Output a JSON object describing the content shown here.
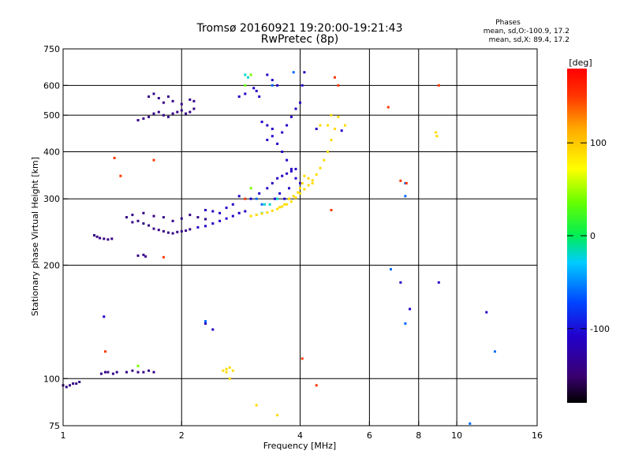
{
  "chart_data": {
    "type": "scatter",
    "title": "Tromsø 20160921 19:20:00-19:21:43",
    "subtitle": "RwPretec (8p)",
    "xlabel": "Frequency [MHz]",
    "ylabel": "Stationary phase Virtual Height [km]",
    "x_scale": "log",
    "y_scale": "log",
    "xlim": [
      1,
      16
    ],
    "ylim": [
      75,
      750
    ],
    "x_ticks": [
      1,
      2,
      4,
      6,
      8,
      10,
      16
    ],
    "y_ticks": [
      75,
      100,
      200,
      300,
      400,
      500,
      600,
      750
    ],
    "grid": true,
    "phases_title": "Phases",
    "phases_lines": [
      "mean, sd,O:-100.9, 17.2",
      "mean, sd,X: 89.4, 17.2"
    ],
    "colorbar": {
      "label": "[deg]",
      "ticks": [
        100,
        0,
        -100
      ],
      "range": [
        -180,
        180
      ]
    },
    "series": [
      {
        "phase": -140,
        "points": [
          [
            1.0,
            96
          ],
          [
            1.02,
            95
          ],
          [
            1.04,
            96
          ],
          [
            1.06,
            97
          ],
          [
            1.08,
            97
          ],
          [
            1.1,
            98
          ],
          [
            1.25,
            103
          ],
          [
            1.28,
            104
          ],
          [
            1.3,
            104
          ],
          [
            1.34,
            103
          ],
          [
            1.37,
            104
          ],
          [
            1.45,
            104
          ],
          [
            1.5,
            105
          ],
          [
            1.55,
            104
          ],
          [
            1.6,
            104
          ],
          [
            1.65,
            105
          ],
          [
            1.7,
            104
          ],
          [
            1.2,
            240
          ],
          [
            1.22,
            238
          ],
          [
            1.24,
            236
          ],
          [
            1.27,
            235
          ],
          [
            1.3,
            234
          ],
          [
            1.33,
            235
          ],
          [
            1.55,
            212
          ],
          [
            1.6,
            213
          ],
          [
            1.62,
            211
          ],
          [
            1.55,
            485
          ],
          [
            1.6,
            490
          ],
          [
            1.65,
            495
          ],
          [
            1.7,
            505
          ],
          [
            1.75,
            510
          ],
          [
            1.8,
            500
          ],
          [
            1.85,
            495
          ],
          [
            1.9,
            505
          ],
          [
            1.95,
            510
          ],
          [
            2.0,
            515
          ],
          [
            2.05,
            505
          ],
          [
            2.1,
            510
          ],
          [
            2.15,
            520
          ],
          [
            1.65,
            560
          ],
          [
            1.7,
            570
          ],
          [
            1.75,
            555
          ],
          [
            1.8,
            540
          ],
          [
            1.85,
            560
          ],
          [
            1.9,
            545
          ],
          [
            2.0,
            535
          ],
          [
            2.1,
            550
          ],
          [
            2.15,
            545
          ],
          [
            1.5,
            260
          ],
          [
            1.55,
            262
          ],
          [
            1.6,
            258
          ],
          [
            1.65,
            255
          ],
          [
            1.7,
            250
          ],
          [
            1.75,
            248
          ],
          [
            1.8,
            246
          ],
          [
            1.85,
            244
          ],
          [
            1.9,
            243
          ],
          [
            1.95,
            245
          ],
          [
            2.0,
            246
          ],
          [
            2.05,
            247
          ],
          [
            2.1,
            249
          ],
          [
            1.45,
            268
          ],
          [
            1.5,
            272
          ],
          [
            1.6,
            275
          ],
          [
            1.7,
            270
          ],
          [
            1.8,
            268
          ],
          [
            1.9,
            262
          ],
          [
            2.0,
            266
          ],
          [
            2.1,
            272
          ],
          [
            2.2,
            268
          ],
          [
            2.3,
            265
          ]
        ]
      },
      {
        "phase": -110,
        "points": [
          [
            1.27,
            146
          ],
          [
            2.4,
            135
          ],
          [
            2.3,
            140
          ],
          [
            2.2,
            252
          ],
          [
            2.3,
            254
          ],
          [
            2.4,
            258
          ],
          [
            2.5,
            262
          ],
          [
            2.6,
            266
          ],
          [
            2.7,
            270
          ],
          [
            2.8,
            275
          ],
          [
            2.9,
            278
          ],
          [
            2.3,
            280
          ],
          [
            2.4,
            278
          ],
          [
            2.5,
            275
          ],
          [
            2.6,
            284
          ],
          [
            2.7,
            290
          ],
          [
            3.2,
            480
          ],
          [
            3.3,
            470
          ],
          [
            3.4,
            460
          ],
          [
            3.5,
            420
          ],
          [
            3.6,
            400
          ],
          [
            3.7,
            380
          ],
          [
            3.8,
            360
          ],
          [
            3.9,
            340
          ],
          [
            4.0,
            330
          ],
          [
            3.6,
            450
          ],
          [
            3.7,
            470
          ],
          [
            3.8,
            495
          ],
          [
            3.9,
            520
          ],
          [
            4.0,
            540
          ],
          [
            4.05,
            600
          ],
          [
            4.1,
            650
          ],
          [
            3.3,
            640
          ],
          [
            3.4,
            620
          ],
          [
            3.5,
            600
          ],
          [
            3.3,
            430
          ],
          [
            3.4,
            440
          ],
          [
            3.05,
            590
          ],
          [
            3.1,
            580
          ],
          [
            3.15,
            560
          ],
          [
            2.8,
            560
          ],
          [
            2.9,
            570
          ],
          [
            2.8,
            305
          ],
          [
            3.0,
            300
          ],
          [
            3.15,
            310
          ],
          [
            3.3,
            320
          ],
          [
            3.4,
            330
          ],
          [
            3.5,
            340
          ],
          [
            3.6,
            345
          ],
          [
            3.7,
            350
          ],
          [
            3.8,
            355
          ],
          [
            3.9,
            360
          ],
          [
            3.45,
            300
          ],
          [
            3.55,
            310
          ],
          [
            3.65,
            300
          ],
          [
            3.75,
            320
          ],
          [
            4.4,
            460
          ],
          [
            4.7,
            470
          ],
          [
            4.9,
            460
          ],
          [
            5.1,
            455
          ],
          [
            7.2,
            180
          ],
          [
            7.6,
            153
          ],
          [
            9.0,
            180
          ],
          [
            11.9,
            150
          ]
        ]
      },
      {
        "phase": -60,
        "points": [
          [
            2.3,
            142
          ],
          [
            7.4,
            140
          ],
          [
            12.5,
            118
          ],
          [
            10.8,
            76
          ],
          [
            6.8,
            195
          ],
          [
            7.4,
            330
          ],
          [
            7.4,
            305
          ],
          [
            3.85,
            650
          ],
          [
            3.4,
            600
          ],
          [
            3.1,
            300
          ],
          [
            3.2,
            290
          ]
        ]
      },
      {
        "phase": -20,
        "points": [
          [
            2.9,
            640
          ],
          [
            2.95,
            630
          ],
          [
            3.2,
            275
          ],
          [
            3.25,
            290
          ],
          [
            3.35,
            290
          ],
          [
            3.5,
            300
          ]
        ]
      },
      {
        "phase": 40,
        "points": [
          [
            1.55,
            108
          ],
          [
            3.0,
            640
          ],
          [
            2.9,
            600
          ],
          [
            3.0,
            320
          ]
        ]
      },
      {
        "phase": 90,
        "points": [
          [
            2.55,
            105
          ],
          [
            2.6,
            106
          ],
          [
            2.65,
            107
          ],
          [
            2.7,
            105
          ],
          [
            2.6,
            104
          ],
          [
            2.65,
            100
          ],
          [
            3.0,
            270
          ],
          [
            3.1,
            272
          ],
          [
            3.2,
            274
          ],
          [
            3.3,
            276
          ],
          [
            3.4,
            279
          ],
          [
            3.5,
            282
          ],
          [
            3.6,
            286
          ],
          [
            3.7,
            290
          ],
          [
            3.8,
            295
          ],
          [
            3.9,
            302
          ],
          [
            4.0,
            310
          ],
          [
            4.1,
            318
          ],
          [
            4.2,
            326
          ],
          [
            4.3,
            336
          ],
          [
            4.4,
            348
          ],
          [
            4.5,
            362
          ],
          [
            4.6,
            380
          ],
          [
            4.7,
            400
          ],
          [
            4.8,
            430
          ],
          [
            4.9,
            460
          ],
          [
            3.55,
            285
          ],
          [
            3.65,
            290
          ],
          [
            3.75,
            300
          ],
          [
            3.85,
            305
          ],
          [
            3.95,
            312
          ],
          [
            4.0,
            320
          ],
          [
            4.05,
            330
          ],
          [
            4.1,
            345
          ],
          [
            4.2,
            340
          ],
          [
            4.3,
            330
          ],
          [
            4.5,
            470
          ],
          [
            4.7,
            470
          ],
          [
            4.8,
            500
          ],
          [
            5.0,
            495
          ],
          [
            5.2,
            470
          ],
          [
            8.9,
            440
          ],
          [
            8.85,
            450
          ],
          [
            3.5,
            80
          ],
          [
            3.1,
            85
          ]
        ]
      },
      {
        "phase": 150,
        "points": [
          [
            1.35,
            385
          ],
          [
            1.4,
            345
          ],
          [
            1.28,
            118
          ],
          [
            1.7,
            380
          ],
          [
            1.8,
            210
          ],
          [
            2.9,
            300
          ],
          [
            4.4,
            96
          ],
          [
            4.05,
            113
          ],
          [
            4.9,
            630
          ],
          [
            5.0,
            600
          ],
          [
            7.2,
            335
          ],
          [
            6.7,
            525
          ],
          [
            9.0,
            600
          ],
          [
            7.45,
            330
          ],
          [
            4.8,
            280
          ]
        ]
      }
    ]
  }
}
